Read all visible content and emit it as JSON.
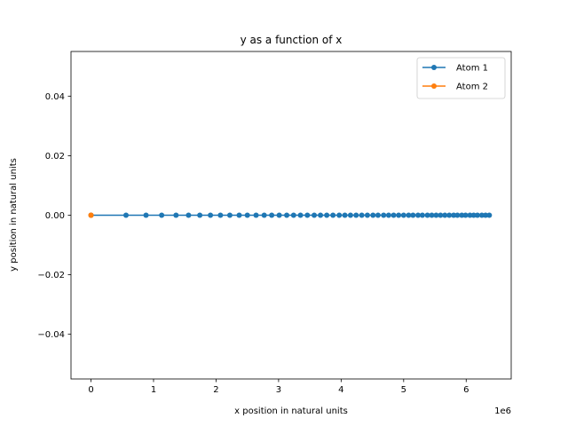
{
  "chart_data": {
    "type": "line",
    "title": "y as a function of x",
    "xlabel": "x position in natural units",
    "ylabel": "y position in natural units",
    "x_offset_text": "1e6",
    "xlim": [
      -320000,
      6720000
    ],
    "ylim": [
      -0.055,
      0.055
    ],
    "x_ticks": [
      0,
      1000000,
      2000000,
      3000000,
      4000000,
      5000000,
      6000000
    ],
    "x_tick_labels": [
      "0",
      "1",
      "2",
      "3",
      "4",
      "5",
      "6"
    ],
    "y_ticks": [
      -0.04,
      -0.02,
      0.0,
      0.02,
      0.04
    ],
    "y_tick_labels": [
      "−0.04",
      "−0.02",
      "0.00",
      "0.02",
      "0.04"
    ],
    "grid": false,
    "legend_position": "top-right",
    "series": [
      {
        "name": "Atom 1",
        "color": "#1f77b4",
        "marker": "circle",
        "x": [
          0,
          560000,
          880000,
          1130000,
          1360000,
          1560000,
          1740000,
          1910000,
          2070000,
          2220000,
          2370000,
          2500000,
          2640000,
          2770000,
          2890000,
          3010000,
          3130000,
          3240000,
          3350000,
          3460000,
          3570000,
          3670000,
          3770000,
          3870000,
          3970000,
          4060000,
          4150000,
          4240000,
          4330000,
          4420000,
          4510000,
          4590000,
          4680000,
          4760000,
          4840000,
          4920000,
          5000000,
          5080000,
          5150000,
          5230000,
          5300000,
          5380000,
          5450000,
          5520000,
          5590000,
          5660000,
          5730000,
          5800000,
          5860000,
          5930000,
          5990000,
          6060000,
          6120000,
          6180000,
          6250000,
          6310000,
          6370000
        ],
        "y": [
          0,
          0,
          0,
          0,
          0,
          0,
          0,
          0,
          0,
          0,
          0,
          0,
          0,
          0,
          0,
          0,
          0,
          0,
          0,
          0,
          0,
          0,
          0,
          0,
          0,
          0,
          0,
          0,
          0,
          0,
          0,
          0,
          0,
          0,
          0,
          0,
          0,
          0,
          0,
          0,
          0,
          0,
          0,
          0,
          0,
          0,
          0,
          0,
          0,
          0,
          0,
          0,
          0,
          0,
          0,
          0,
          0
        ]
      },
      {
        "name": "Atom 2",
        "color": "#ff7f0e",
        "marker": "circle",
        "x": [
          0,
          0
        ],
        "y": [
          0,
          0
        ]
      }
    ]
  }
}
